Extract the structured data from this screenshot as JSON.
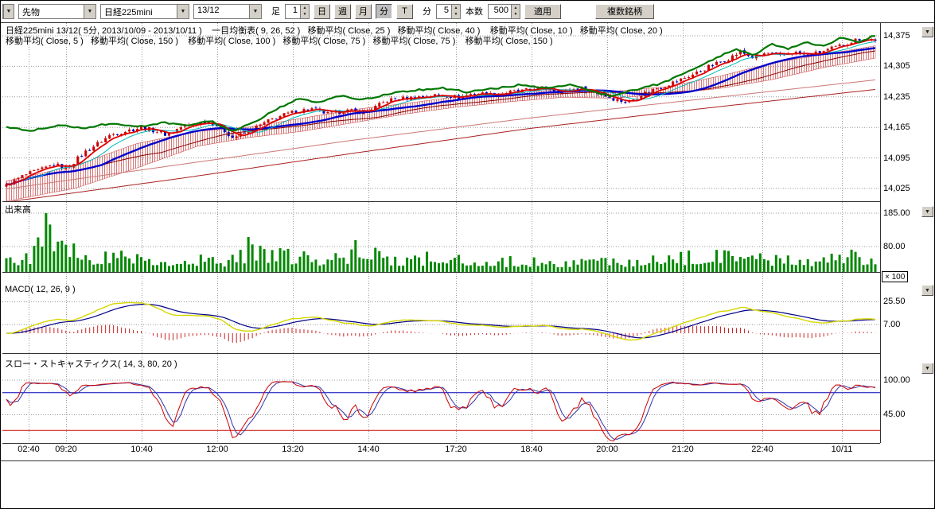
{
  "icons": {
    "dropdown_arrow": "▼",
    "spin_up": "▲",
    "spin_down": "▼"
  },
  "toolbar": {
    "instrument_type": "先物",
    "symbol": "日経225mini",
    "contract_month": "13/12",
    "bar_label": "足",
    "interval_value": "1",
    "period_buttons": [
      "日",
      "週",
      "月",
      "分",
      "T"
    ],
    "minute_label": "分",
    "minute_value": "5",
    "count_label": "本数",
    "count_value": "500",
    "apply_label": "適用",
    "multi_symbol_label": "複数銘柄"
  },
  "legend": {
    "row1": "日経225mini 13/12( 5分, 2013/10/09 - 2013/10/11 )    一目均衡表( 9, 26, 52 )   移動平均( Close, 25 )   移動平均( Close, 40 )    移動平均( Close, 10 )   移動平均( Close, 20 )",
    "row2": "移動平均( Close, 5 )   移動平均( Close, 150 )    移動平均( Close, 100 )   移動平均( Close, 75 )   移動平均( Close, 75 )    移動平均( Close, 150 )"
  },
  "colors": {
    "candle_up": "#cc0000",
    "candle_down": "#0000bb",
    "volume_bar": "#008800",
    "ma_green": "#007700",
    "ma_blue": "#0000cc",
    "ma_red": "#dd0000",
    "ma_cyan": "#00bbbb",
    "ma_darkred": "#880000",
    "macd_line": "#d6d600",
    "macd_signal": "#000088",
    "macd_hist": "#cc2222",
    "stoch_k": "#cc0000",
    "stoch_d": "#3333aa",
    "stoch_upper": "#0000bb",
    "stoch_lower": "#cc0000",
    "cloud_hatch": "#cc5555",
    "grid": "#999999"
  },
  "xaxis": {
    "labels": [
      "02:40",
      "09:20",
      "10:40",
      "12:00",
      "13:20",
      "14:40",
      "17:20",
      "18:40",
      "20:00",
      "21:20",
      "22:40",
      "10/11"
    ]
  },
  "chart_data": [
    {
      "name": "price",
      "type": "candlestick",
      "title": "日経225mini 13/12( 5分, 2013/10/09 - 2013/10/11 )",
      "overlays": [
        "一目均衡表( 9, 26, 52 )",
        "移動平均( Close, 25 )",
        "移動平均( Close, 40 )",
        "移動平均( Close, 10 )",
        "移動平均( Close, 20 )",
        "移動平均( Close, 5 )",
        "移動平均( Close, 150 )",
        "移動平均( Close, 100 )",
        "移動平均( Close, 75 )",
        "移動平均( Close, 75 )",
        "移動平均( Close, 150 )"
      ],
      "ylim": [
        13990,
        14410
      ],
      "yticks": [
        {
          "v": 14375,
          "label": "14,375"
        },
        {
          "v": 14305,
          "label": "14,305"
        },
        {
          "v": 14235,
          "label": "14,235"
        },
        {
          "v": 14165,
          "label": "14,165"
        },
        {
          "v": 14095,
          "label": "14,095"
        },
        {
          "v": 14025,
          "label": "14,025"
        }
      ],
      "n_bars": 220,
      "noise": 5,
      "close_points": [
        [
          0,
          14032
        ],
        [
          0.02,
          14055
        ],
        [
          0.04,
          14068
        ],
        [
          0.055,
          14080
        ],
        [
          0.07,
          14072
        ],
        [
          0.09,
          14108
        ],
        [
          0.105,
          14128
        ],
        [
          0.12,
          14148
        ],
        [
          0.14,
          14158
        ],
        [
          0.155,
          14165
        ],
        [
          0.17,
          14158
        ],
        [
          0.185,
          14148
        ],
        [
          0.2,
          14165
        ],
        [
          0.215,
          14172
        ],
        [
          0.23,
          14180
        ],
        [
          0.245,
          14168
        ],
        [
          0.26,
          14142
        ],
        [
          0.275,
          14152
        ],
        [
          0.29,
          14168
        ],
        [
          0.31,
          14188
        ],
        [
          0.33,
          14200
        ],
        [
          0.35,
          14208
        ],
        [
          0.37,
          14196
        ],
        [
          0.39,
          14204
        ],
        [
          0.41,
          14200
        ],
        [
          0.425,
          14212
        ],
        [
          0.44,
          14228
        ],
        [
          0.46,
          14232
        ],
        [
          0.48,
          14236
        ],
        [
          0.5,
          14240
        ],
        [
          0.52,
          14234
        ],
        [
          0.54,
          14244
        ],
        [
          0.56,
          14240
        ],
        [
          0.58,
          14246
        ],
        [
          0.6,
          14250
        ],
        [
          0.62,
          14256
        ],
        [
          0.64,
          14246
        ],
        [
          0.66,
          14256
        ],
        [
          0.68,
          14244
        ],
        [
          0.7,
          14230
        ],
        [
          0.715,
          14222
        ],
        [
          0.73,
          14240
        ],
        [
          0.75,
          14256
        ],
        [
          0.77,
          14270
        ],
        [
          0.79,
          14286
        ],
        [
          0.81,
          14306
        ],
        [
          0.83,
          14322
        ],
        [
          0.845,
          14338
        ],
        [
          0.86,
          14324
        ],
        [
          0.875,
          14336
        ],
        [
          0.89,
          14328
        ],
        [
          0.905,
          14338
        ],
        [
          0.92,
          14330
        ],
        [
          0.935,
          14336
        ],
        [
          0.95,
          14346
        ],
        [
          0.965,
          14356
        ],
        [
          0.98,
          14368
        ],
        [
          1,
          14366
        ]
      ],
      "green_line_points": [
        [
          0,
          14166
        ],
        [
          0.03,
          14158
        ],
        [
          0.06,
          14170
        ],
        [
          0.09,
          14164
        ],
        [
          0.12,
          14174
        ],
        [
          0.15,
          14166
        ],
        [
          0.18,
          14176
        ],
        [
          0.21,
          14168
        ],
        [
          0.235,
          14180
        ],
        [
          0.26,
          14156
        ],
        [
          0.285,
          14176
        ],
        [
          0.31,
          14206
        ],
        [
          0.335,
          14230
        ],
        [
          0.36,
          14222
        ],
        [
          0.385,
          14238
        ],
        [
          0.41,
          14228
        ],
        [
          0.44,
          14242
        ],
        [
          0.47,
          14250
        ],
        [
          0.5,
          14256
        ],
        [
          0.53,
          14246
        ],
        [
          0.56,
          14254
        ],
        [
          0.59,
          14262
        ],
        [
          0.62,
          14254
        ],
        [
          0.65,
          14262
        ],
        [
          0.68,
          14244
        ],
        [
          0.7,
          14236
        ],
        [
          0.72,
          14250
        ],
        [
          0.75,
          14264
        ],
        [
          0.78,
          14288
        ],
        [
          0.8,
          14306
        ],
        [
          0.82,
          14328
        ],
        [
          0.84,
          14344
        ],
        [
          0.86,
          14330
        ],
        [
          0.88,
          14356
        ],
        [
          0.9,
          14344
        ],
        [
          0.92,
          14362
        ],
        [
          0.94,
          14350
        ],
        [
          0.96,
          14370
        ],
        [
          0.98,
          14360
        ],
        [
          1,
          14376
        ]
      ],
      "cloud_top_points": [
        [
          0,
          14042
        ],
        [
          0.08,
          14078
        ],
        [
          0.15,
          14128
        ],
        [
          0.22,
          14156
        ],
        [
          0.28,
          14166
        ],
        [
          0.34,
          14186
        ],
        [
          0.4,
          14206
        ],
        [
          0.46,
          14220
        ],
        [
          0.52,
          14236
        ],
        [
          0.58,
          14244
        ],
        [
          0.64,
          14252
        ],
        [
          0.7,
          14248
        ],
        [
          0.76,
          14258
        ],
        [
          0.82,
          14282
        ],
        [
          0.88,
          14312
        ],
        [
          0.94,
          14332
        ],
        [
          1,
          14352
        ]
      ],
      "cloud_bottom_points": [
        [
          0,
          13996
        ],
        [
          0.08,
          14026
        ],
        [
          0.15,
          14072
        ],
        [
          0.22,
          14122
        ],
        [
          0.28,
          14142
        ],
        [
          0.34,
          14156
        ],
        [
          0.4,
          14176
        ],
        [
          0.46,
          14196
        ],
        [
          0.52,
          14212
        ],
        [
          0.58,
          14224
        ],
        [
          0.64,
          14234
        ],
        [
          0.7,
          14232
        ],
        [
          0.76,
          14242
        ],
        [
          0.82,
          14254
        ],
        [
          0.88,
          14274
        ],
        [
          0.94,
          14302
        ],
        [
          1,
          14324
        ]
      ],
      "slow_lines": [
        {
          "color": "#aa2222",
          "points": [
            [
              0,
              13994
            ],
            [
              0.2,
              14048
            ],
            [
              0.4,
              14106
            ],
            [
              0.6,
              14162
            ],
            [
              0.8,
              14208
            ],
            [
              1,
              14252
            ]
          ]
        },
        {
          "color": "#cc7777",
          "points": [
            [
              0,
              14024
            ],
            [
              0.2,
              14080
            ],
            [
              0.4,
              14136
            ],
            [
              0.6,
              14186
            ],
            [
              0.8,
              14230
            ],
            [
              1,
              14274
            ]
          ]
        }
      ]
    },
    {
      "name": "volume",
      "type": "bar",
      "title": "出来高",
      "unit": "× 100",
      "yticks": [
        {
          "v": 185,
          "label": "185.00"
        },
        {
          "v": 80,
          "label": "80.00"
        }
      ],
      "envelope_points": [
        [
          0,
          50
        ],
        [
          0.03,
          70
        ],
        [
          0.045,
          185
        ],
        [
          0.06,
          110
        ],
        [
          0.08,
          90
        ],
        [
          0.1,
          75
        ],
        [
          0.13,
          85
        ],
        [
          0.16,
          70
        ],
        [
          0.19,
          60
        ],
        [
          0.22,
          65
        ],
        [
          0.25,
          55
        ],
        [
          0.28,
          95
        ],
        [
          0.31,
          85
        ],
        [
          0.34,
          70
        ],
        [
          0.37,
          60
        ],
        [
          0.4,
          85
        ],
        [
          0.43,
          75
        ],
        [
          0.46,
          60
        ],
        [
          0.49,
          65
        ],
        [
          0.52,
          60
        ],
        [
          0.55,
          55
        ],
        [
          0.58,
          50
        ],
        [
          0.61,
          55
        ],
        [
          0.64,
          45
        ],
        [
          0.67,
          50
        ],
        [
          0.7,
          55
        ],
        [
          0.73,
          50
        ],
        [
          0.76,
          55
        ],
        [
          0.8,
          85
        ],
        [
          0.83,
          70
        ],
        [
          0.86,
          65
        ],
        [
          0.89,
          60
        ],
        [
          0.92,
          55
        ],
        [
          0.95,
          70
        ],
        [
          0.98,
          75
        ],
        [
          1,
          70
        ]
      ],
      "spikes": [
        [
          0.045,
          185
        ],
        [
          0.28,
          110
        ],
        [
          0.4,
          100
        ]
      ]
    },
    {
      "name": "macd",
      "type": "line",
      "title": "MACD( 12, 26, 9 )",
      "params": {
        "fast": 12,
        "slow": 26,
        "signal": 9
      },
      "yticks": [
        {
          "v": 25.5,
          "label": "25.50"
        },
        {
          "v": 7,
          "label": "7.00"
        }
      ]
    },
    {
      "name": "stoch",
      "type": "line",
      "title": "スロー・ストキャスティクス( 14, 3, 80, 20 )",
      "params": {
        "period": 14,
        "slow": 3,
        "upper": 80,
        "lower": 20
      },
      "yticks": [
        {
          "v": 100,
          "label": "100.00"
        },
        {
          "v": 45,
          "label": "45.00"
        }
      ]
    }
  ]
}
